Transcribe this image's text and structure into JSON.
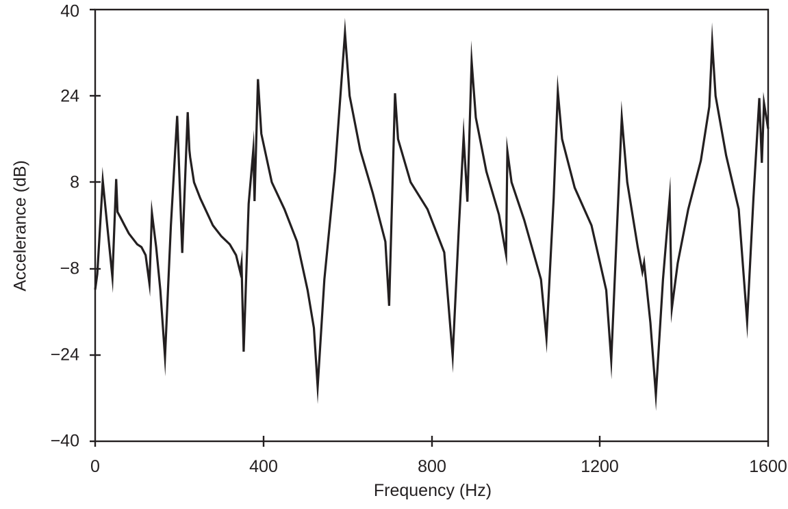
{
  "chart_data": {
    "type": "line",
    "title": "",
    "xlabel": "Frequency (Hz)",
    "ylabel": "Accelerance (dB)",
    "xlim": [
      0,
      1600
    ],
    "ylim": [
      -40,
      40
    ],
    "xticks": [
      0,
      400,
      800,
      1200,
      1600
    ],
    "yticks": [
      40,
      24,
      8,
      -8,
      -24,
      -40
    ],
    "xtick_labels": [
      "0",
      "400",
      "800",
      "1200",
      "1600"
    ],
    "ytick_labels": [
      "40",
      "24",
      "8",
      "−8",
      "−24",
      "−40"
    ],
    "grid": false,
    "legend": null,
    "line_color": "#231f20",
    "series": [
      {
        "name": "Accelerance",
        "x": [
          0,
          5,
          18,
          30,
          41,
          50,
          53,
          60,
          70,
          80,
          90,
          100,
          110,
          120,
          129,
          135,
          145,
          155,
          166,
          180,
          195,
          207,
          220,
          224,
          226,
          235,
          250,
          265,
          280,
          300,
          320,
          335,
          345,
          348,
          353,
          365,
          376,
          379,
          387,
          395,
          420,
          450,
          480,
          505,
          520,
          529,
          545,
          570,
          594,
          605,
          630,
          660,
          690,
          699,
          713,
          720,
          750,
          790,
          830,
          850,
          865,
          876,
          885,
          895,
          905,
          930,
          960,
          977,
          980,
          990,
          1020,
          1060,
          1073,
          1090,
          1100,
          1110,
          1140,
          1180,
          1215,
          1227,
          1252,
          1265,
          1290,
          1301,
          1305,
          1320,
          1333,
          1350,
          1366,
          1371,
          1385,
          1410,
          1440,
          1460,
          1467,
          1475,
          1500,
          1530,
          1550,
          1565,
          1579,
          1585,
          1590,
          1600
        ],
        "y": [
          -11.9,
          -9,
          8.3,
          -1,
          -9.6,
          8.6,
          2.5,
          1.5,
          0,
          -1.5,
          -2.5,
          -3.5,
          -4,
          -5.5,
          -10.8,
          2.3,
          -4,
          -12,
          -24.4,
          0,
          20.3,
          -5.1,
          21,
          14,
          12.6,
          8,
          5,
          2.5,
          0,
          -2,
          -3.5,
          -5.5,
          -8.7,
          -7,
          -23.4,
          4,
          14,
          4.5,
          27.1,
          17,
          8,
          3,
          -3,
          -12,
          -19,
          -29.9,
          -10,
          10,
          35.7,
          24,
          14,
          6,
          -3,
          -14.9,
          24.5,
          16,
          8,
          3,
          -5,
          -24.2,
          0,
          16.4,
          4.4,
          30.4,
          20,
          10,
          2,
          -5.4,
          13.8,
          8,
          1,
          -10,
          -20.9,
          5,
          24.8,
          16,
          7,
          0,
          -12,
          -25,
          20,
          8,
          -4,
          -8.6,
          -6.9,
          -18,
          -31.4,
          -10,
          5.1,
          -15.4,
          -7,
          3,
          12,
          22,
          33.9,
          24,
          13,
          3,
          -17.8,
          5,
          23.6,
          11.6,
          22.7,
          17.9
        ]
      }
    ]
  },
  "axes": {
    "xlabel": "Frequency (Hz)",
    "ylabel": "Accelerance (dB)",
    "xticks": [
      "0",
      "400",
      "800",
      "1200",
      "1600"
    ],
    "yticks": [
      "40",
      "24",
      "8",
      "−8",
      "−24",
      "−40"
    ]
  }
}
